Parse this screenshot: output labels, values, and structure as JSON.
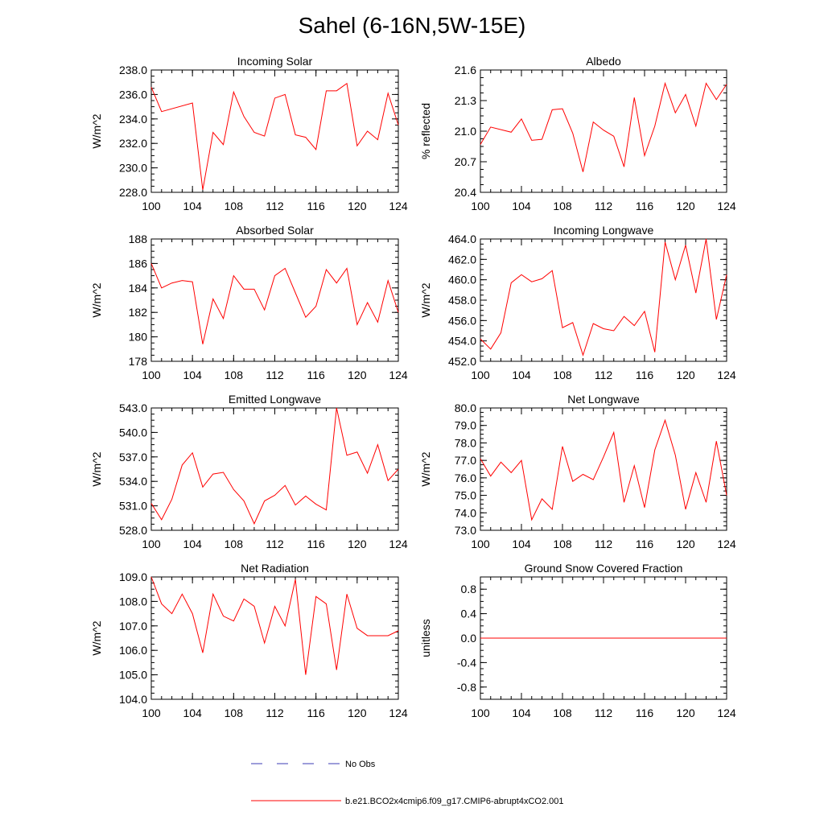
{
  "title": "Sahel (6-16N,5W-15E)",
  "colors": {
    "series": "#ff0000",
    "obs": "#3b3bb5"
  },
  "legend": {
    "placement": "bottom-center",
    "entries": [
      {
        "label": "No Obs",
        "style": "dashed",
        "color": "#3b3bb5"
      },
      {
        "label": "b.e21.BCO2x4cmip6.f09_g17.CMIP6-abrupt4xCO2.001",
        "style": "solid",
        "color": "#ff0000"
      }
    ]
  },
  "chart_data": [
    {
      "type": "line",
      "title": "Incoming Solar",
      "ylabel": "W/m^2",
      "xlim": [
        100,
        124
      ],
      "ylim": [
        228,
        238
      ],
      "xticks": [
        "100",
        "104",
        "108",
        "112",
        "116",
        "120",
        "124"
      ],
      "yticks": [
        "228.0",
        "230.0",
        "232.0",
        "234.0",
        "236.0",
        "238.0"
      ],
      "x": [
        100,
        101,
        104,
        105,
        106,
        107,
        108,
        109,
        110,
        111,
        112,
        113,
        114,
        115,
        116,
        117,
        118,
        119,
        120,
        121,
        122,
        123,
        124
      ],
      "series": [
        {
          "values": [
            236.6,
            234.6,
            235.3,
            228.2,
            232.9,
            231.9,
            236.2,
            234.2,
            232.9,
            232.6,
            235.7,
            236.0,
            232.7,
            232.5,
            231.5,
            236.3,
            236.3,
            236.9,
            231.8,
            233.0,
            232.3,
            236.1,
            233.5
          ]
        }
      ]
    },
    {
      "type": "line",
      "title": "Albedo",
      "ylabel": "% reflected",
      "xlim": [
        100,
        124
      ],
      "ylim": [
        20.4,
        21.6
      ],
      "xticks": [
        "100",
        "104",
        "108",
        "112",
        "116",
        "120",
        "124"
      ],
      "yticks": [
        "20.4",
        "20.7",
        "21.0",
        "21.3",
        "21.6"
      ],
      "x": [
        100,
        101,
        103,
        104,
        105,
        106,
        107,
        108,
        109,
        110,
        111,
        112,
        113,
        114,
        115,
        116,
        117,
        118,
        119,
        120,
        121,
        122,
        123,
        124
      ],
      "series": [
        {
          "values": [
            20.87,
            21.04,
            20.99,
            21.12,
            20.91,
            20.92,
            21.21,
            21.22,
            20.98,
            20.6,
            21.09,
            21.01,
            20.95,
            20.65,
            21.33,
            20.76,
            21.05,
            21.47,
            21.18,
            21.36,
            21.05,
            21.47,
            21.31,
            21.46
          ]
        }
      ]
    },
    {
      "type": "line",
      "title": "Absorbed Solar",
      "ylabel": "W/m^2",
      "xlim": [
        100,
        124
      ],
      "ylim": [
        178,
        188
      ],
      "xticks": [
        "100",
        "104",
        "108",
        "112",
        "116",
        "120",
        "124"
      ],
      "yticks": [
        "178",
        "180",
        "182",
        "184",
        "186",
        "188"
      ],
      "x": [
        100,
        101,
        102,
        103,
        104,
        105,
        106,
        107,
        108,
        109,
        110,
        111,
        112,
        113,
        114,
        115,
        116,
        117,
        118,
        119,
        120,
        121,
        122,
        123,
        124
      ],
      "series": [
        {
          "values": [
            186.0,
            184.0,
            184.4,
            184.6,
            184.5,
            179.4,
            183.1,
            181.5,
            185.0,
            183.9,
            183.9,
            182.2,
            185.0,
            185.6,
            183.6,
            181.6,
            182.5,
            185.5,
            184.4,
            185.6,
            181.0,
            182.8,
            181.2,
            184.6,
            182.0
          ]
        }
      ]
    },
    {
      "type": "line",
      "title": "Incoming Longwave",
      "ylabel": "W/m^2",
      "xlim": [
        100,
        124
      ],
      "ylim": [
        452,
        464
      ],
      "xticks": [
        "100",
        "104",
        "108",
        "112",
        "116",
        "120",
        "124"
      ],
      "yticks": [
        "452.0",
        "454.0",
        "456.0",
        "458.0",
        "460.0",
        "462.0",
        "464.0"
      ],
      "x": [
        100,
        101,
        102,
        103,
        104,
        105,
        106,
        107,
        108,
        109,
        110,
        111,
        112,
        113,
        114,
        115,
        116,
        117,
        118,
        119,
        120,
        121,
        122,
        123,
        124
      ],
      "series": [
        {
          "values": [
            454.2,
            453.2,
            454.8,
            459.7,
            460.5,
            459.8,
            460.1,
            460.9,
            455.3,
            455.8,
            452.6,
            455.7,
            455.2,
            455.0,
            456.4,
            455.5,
            456.9,
            452.9,
            463.7,
            460.0,
            463.4,
            458.7,
            464.0,
            456.1,
            460.5
          ]
        }
      ]
    },
    {
      "type": "line",
      "title": "Emitted Longwave",
      "ylabel": "W/m^2",
      "xlim": [
        100,
        124
      ],
      "ylim": [
        528,
        543
      ],
      "xticks": [
        "100",
        "104",
        "108",
        "112",
        "116",
        "120",
        "124"
      ],
      "yticks": [
        "528.0",
        "531.0",
        "534.0",
        "537.0",
        "540.0",
        "543.0"
      ],
      "x": [
        100,
        101,
        102,
        103,
        104,
        105,
        106,
        107,
        108,
        109,
        110,
        111,
        112,
        113,
        114,
        115,
        116,
        117,
        118,
        119,
        120,
        121,
        122,
        123,
        124
      ],
      "series": [
        {
          "values": [
            531.3,
            529.3,
            531.8,
            536.0,
            537.5,
            533.3,
            534.9,
            535.1,
            533.0,
            531.6,
            528.8,
            531.6,
            532.3,
            533.5,
            531.1,
            532.2,
            531.2,
            530.5,
            543.0,
            537.2,
            537.6,
            535.0,
            538.5,
            534.1,
            535.5
          ]
        }
      ]
    },
    {
      "type": "line",
      "title": "Net Longwave",
      "ylabel": "W/m^2",
      "xlim": [
        100,
        124
      ],
      "ylim": [
        73,
        80
      ],
      "xticks": [
        "100",
        "104",
        "108",
        "112",
        "116",
        "120",
        "124"
      ],
      "yticks": [
        "73.0",
        "74.0",
        "75.0",
        "76.0",
        "77.0",
        "78.0",
        "79.0",
        "80.0"
      ],
      "x": [
        100,
        101,
        102,
        103,
        104,
        105,
        106,
        107,
        108,
        109,
        110,
        111,
        112,
        113,
        114,
        115,
        116,
        117,
        118,
        119,
        120,
        121,
        122,
        123,
        124
      ],
      "series": [
        {
          "values": [
            77.1,
            76.1,
            76.9,
            76.3,
            77.0,
            73.6,
            74.8,
            74.2,
            77.8,
            75.8,
            76.2,
            75.9,
            77.2,
            78.6,
            74.6,
            76.7,
            74.3,
            77.6,
            79.3,
            77.3,
            74.2,
            76.3,
            74.6,
            78.1,
            75.0
          ]
        }
      ]
    },
    {
      "type": "line",
      "title": "Net Radiation",
      "ylabel": "W/m^2",
      "xlim": [
        100,
        124
      ],
      "ylim": [
        104,
        109
      ],
      "xticks": [
        "100",
        "104",
        "108",
        "112",
        "116",
        "120",
        "124"
      ],
      "yticks": [
        "104.0",
        "105.0",
        "106.0",
        "107.0",
        "108.0",
        "109.0"
      ],
      "x": [
        100,
        101,
        102,
        103,
        104,
        105,
        106,
        107,
        108,
        109,
        110,
        111,
        112,
        113,
        114,
        115,
        116,
        117,
        118,
        119,
        120,
        121,
        122,
        123,
        124
      ],
      "series": [
        {
          "values": [
            109.0,
            107.9,
            107.5,
            108.3,
            107.5,
            105.9,
            108.3,
            107.4,
            107.2,
            108.1,
            107.8,
            106.3,
            107.8,
            107.0,
            108.9,
            105.0,
            108.2,
            107.9,
            105.2,
            108.3,
            106.9,
            106.6,
            106.6,
            106.6,
            106.8
          ]
        }
      ]
    },
    {
      "type": "line",
      "title": "Ground Snow Covered Fraction",
      "ylabel": "unitless",
      "xlim": [
        100,
        124
      ],
      "ylim": [
        -1,
        1
      ],
      "xticks": [
        "100",
        "104",
        "108",
        "112",
        "116",
        "120",
        "124"
      ],
      "yticks": [
        "-0.8",
        "-0.4",
        "0.0",
        "0.4",
        "0.8"
      ],
      "x": [
        100,
        124
      ],
      "series": [
        {
          "values": [
            0.0,
            0.0
          ]
        }
      ]
    }
  ]
}
